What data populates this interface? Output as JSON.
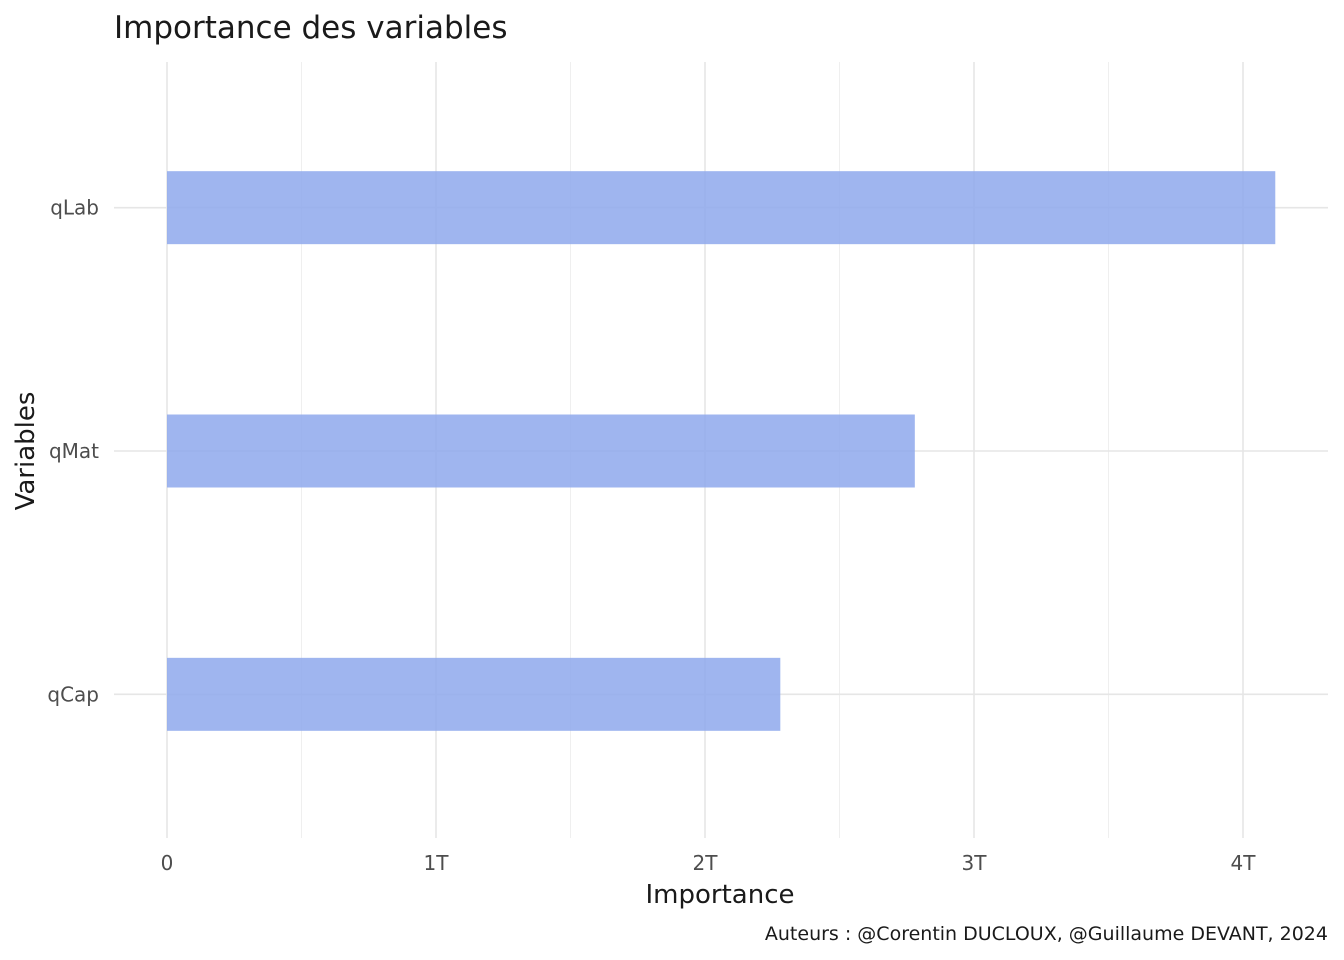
{
  "chart_data": {
    "type": "bar",
    "orientation": "horizontal",
    "title": "Importance des variables",
    "xlabel": "Importance",
    "ylabel": "Variables",
    "caption": "Auteurs : @Corentin DUCLOUX, @Guillaume DEVANT, 2024",
    "categories": [
      "qLab",
      "qMat",
      "qCap"
    ],
    "values": [
      4120000000000.0,
      2780000000000.0,
      2280000000000.0
    ],
    "xlim": [
      0,
      4320000000000.0
    ],
    "x_ticks": [
      {
        "value": 0,
        "label": "0"
      },
      {
        "value": 1000000000000.0,
        "label": "1T"
      },
      {
        "value": 2000000000000.0,
        "label": "2T"
      },
      {
        "value": 3000000000000.0,
        "label": "3T"
      },
      {
        "value": 4000000000000.0,
        "label": "4T"
      }
    ],
    "grid": true,
    "bar_color": "#8ea8ec",
    "bar_opacity": 0.85
  }
}
